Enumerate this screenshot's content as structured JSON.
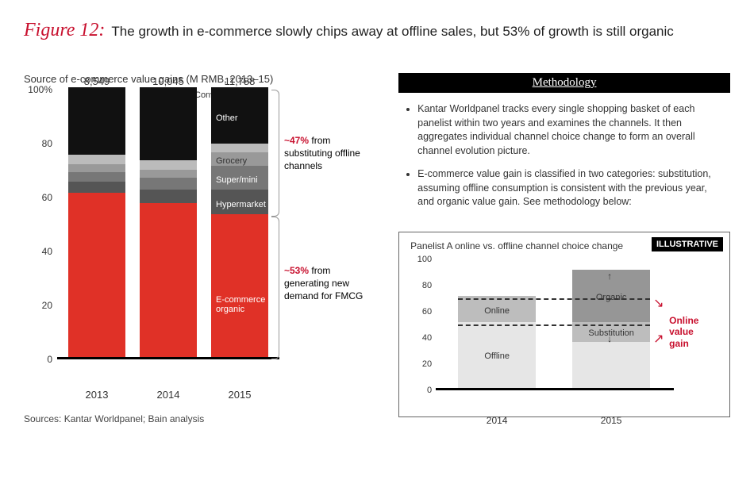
{
  "figure": {
    "label": "Figure 12:",
    "caption": "The growth in e-commerce slowly chips away at offline sales, but 53% of growth is still organic"
  },
  "main_chart": {
    "title": "Source of e-commerce value gains (M RMB, 2013–15)",
    "convenience_label": "Convenience",
    "y_suffix": "%",
    "y_ticks": [
      0,
      20,
      40,
      60,
      80,
      100
    ],
    "categories": [
      "2013",
      "2014",
      "2015"
    ],
    "totals": [
      "8,549",
      "10,045",
      "11,788"
    ],
    "segments": [
      "E-commerce organic",
      "Hypermarket",
      "Super/mini",
      "Grocery",
      "Convenience",
      "Other"
    ],
    "colors": [
      "#e03127",
      "#555555",
      "#777777",
      "#999999",
      "#bbbbbb",
      "#111111"
    ],
    "stacks": [
      [
        61,
        4,
        3.5,
        3,
        3.5,
        25
      ],
      [
        57,
        5,
        4.5,
        3,
        3.5,
        27
      ],
      [
        53,
        9,
        9,
        5,
        3,
        21
      ]
    ],
    "segment_labels_on_bar3": [
      {
        "text": "Other",
        "color": "#fff"
      },
      {
        "text": "Grocery",
        "color": "#333"
      },
      {
        "text": "Super/mini",
        "color": "#fff"
      },
      {
        "text": "Hypermarket",
        "color": "#fff"
      },
      {
        "text": "E-commerce organic",
        "color": "#fff"
      }
    ],
    "annotations": {
      "upper": {
        "pct": "~47%",
        "text": "from substituting offline channels"
      },
      "lower": {
        "pct": "~53%",
        "text": "from generating new demand for FMCG"
      }
    }
  },
  "sources": "Sources: Kantar Worldpanel; Bain analysis",
  "methodology": {
    "header": "Methodology",
    "bullets": [
      "Kantar Worldpanel tracks every single shopping basket of each panelist within two years and examines the channels. It then aggregates individual channel choice change to form an overall channel evolution picture.",
      "E-commerce value gain is classified in two categories: substitution, assuming offline consumption is consistent with the previous year, and organic value gain. See methodology below:"
    ]
  },
  "illustrative": {
    "title": "Panelist A online vs. offline channel choice change",
    "tag": "ILLUSTRATIVE",
    "y_ticks": [
      0,
      20,
      40,
      60,
      80,
      100
    ],
    "categories": [
      "2014",
      "2015"
    ],
    "bars": [
      {
        "offline": 50,
        "online": 20,
        "organic": 0
      },
      {
        "offline": 35,
        "online": 15,
        "organic": 40
      }
    ],
    "colors": {
      "offline": "#e6e6e6",
      "online": "#bdbdbd",
      "organic": "#969696"
    },
    "labels": {
      "offline": "Offline",
      "online": "Online",
      "substitution": "Substitution",
      "organic": "Organic"
    },
    "gain_label": "Online value gain"
  }
}
